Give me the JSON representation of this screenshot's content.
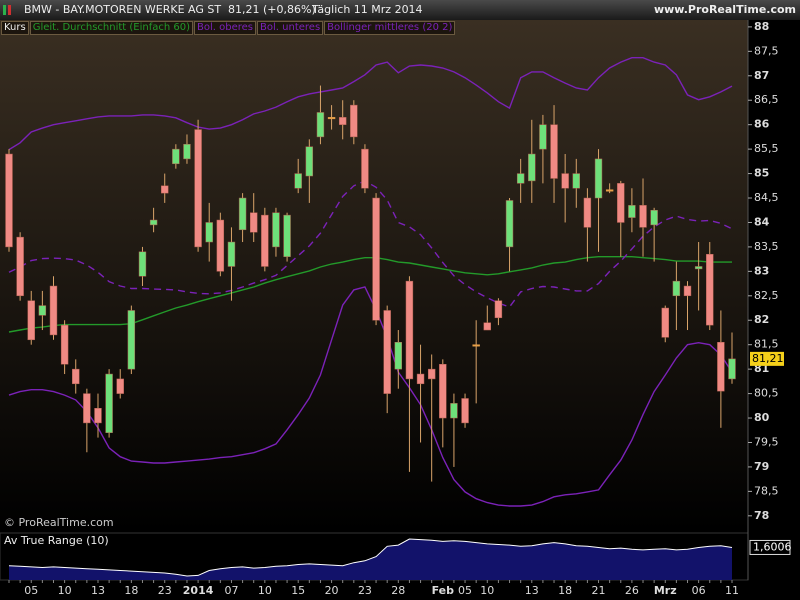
{
  "header": {
    "symbol": "BMW - BAY.MOTOREN WERKE AG ST",
    "quote": "81,21 (+0,86%)",
    "period": "Täglich  11 Mrz 2014",
    "site": "www.ProRealTime.com",
    "watermark": "© ProRealTime.com"
  },
  "chart_data": [
    {
      "type": "candlestick",
      "name": "Kurs",
      "categories": [
        null,
        null,
        "05",
        null,
        null,
        "10",
        null,
        null,
        "13",
        null,
        null,
        "18",
        null,
        null,
        "23",
        null,
        null,
        "2014",
        null,
        null,
        "07",
        null,
        null,
        "10",
        null,
        null,
        "15",
        null,
        null,
        "20",
        null,
        null,
        "23",
        null,
        null,
        "28",
        null,
        null,
        null,
        "Feb",
        null,
        "05",
        null,
        "10",
        null,
        null,
        null,
        "13",
        null,
        null,
        "18",
        null,
        null,
        "21",
        null,
        null,
        "26",
        null,
        null,
        "Mrz",
        null,
        null,
        "06",
        null,
        null,
        "11"
      ],
      "open": [
        85.4,
        83.7,
        82.4,
        82.1,
        82.7,
        81.9,
        81.0,
        80.5,
        80.2,
        79.7,
        80.8,
        81.0,
        82.9,
        83.95,
        84.75,
        85.2,
        85.3,
        85.9,
        83.6,
        84.05,
        83.1,
        83.85,
        84.2,
        84.15,
        83.5,
        83.3,
        84.7,
        84.95,
        85.75,
        86.15,
        86.15,
        86.4,
        85.5,
        84.5,
        82.2,
        81.0,
        82.8,
        80.9,
        81.0,
        81.1,
        80.0,
        80.4,
        81.5,
        81.95,
        82.4,
        83.5,
        84.8,
        84.85,
        85.5,
        86.0,
        85.0,
        84.7,
        84.5,
        84.5,
        84.67,
        84.8,
        84.1,
        84.35,
        83.95,
        82.25,
        82.5,
        82.7,
        83.05,
        83.35,
        81.55,
        80.8
      ],
      "high": [
        85.5,
        83.8,
        82.6,
        82.6,
        82.9,
        82.0,
        81.2,
        80.6,
        80.5,
        81.0,
        81.0,
        82.3,
        83.5,
        84.3,
        85.0,
        85.6,
        85.8,
        86.1,
        84.4,
        84.2,
        83.9,
        84.6,
        84.6,
        84.3,
        84.3,
        84.2,
        85.3,
        85.7,
        86.8,
        86.4,
        86.5,
        86.5,
        85.6,
        84.6,
        82.3,
        81.8,
        82.9,
        81.5,
        81.3,
        81.2,
        80.5,
        80.5,
        82.0,
        82.3,
        82.45,
        84.5,
        85.3,
        86.1,
        86.2,
        86.4,
        85.4,
        85.3,
        84.7,
        85.5,
        84.8,
        84.85,
        84.7,
        84.9,
        84.3,
        82.3,
        83.2,
        82.8,
        83.6,
        83.6,
        82.2,
        81.75
      ],
      "low": [
        83.4,
        82.4,
        81.5,
        81.8,
        81.6,
        80.9,
        80.5,
        79.3,
        79.6,
        79.6,
        80.4,
        80.9,
        82.7,
        83.8,
        84.4,
        85.1,
        85.2,
        83.4,
        83.2,
        82.9,
        82.4,
        83.6,
        83.6,
        83.0,
        83.3,
        83.2,
        84.6,
        84.4,
        85.6,
        85.9,
        85.7,
        85.6,
        84.6,
        81.9,
        80.1,
        80.6,
        78.9,
        79.5,
        78.7,
        79.4,
        79.0,
        79.8,
        80.3,
        81.8,
        81.9,
        83.0,
        84.4,
        84.4,
        84.8,
        84.4,
        84.0,
        84.3,
        83.2,
        83.4,
        84.6,
        83.3,
        83.8,
        83.3,
        83.2,
        81.55,
        81.8,
        81.8,
        82.2,
        81.8,
        79.8,
        80.7
      ],
      "close": [
        83.5,
        82.5,
        81.6,
        82.3,
        81.7,
        81.1,
        80.7,
        79.9,
        79.9,
        80.9,
        80.5,
        82.2,
        83.4,
        84.05,
        84.6,
        85.5,
        85.6,
        83.5,
        84.0,
        83.0,
        83.6,
        84.5,
        83.8,
        83.1,
        84.2,
        84.15,
        85.0,
        85.55,
        86.25,
        86.15,
        86.0,
        85.75,
        84.7,
        82.0,
        80.5,
        81.55,
        80.8,
        80.7,
        80.8,
        80.0,
        80.3,
        79.9,
        81.5,
        81.8,
        82.05,
        84.45,
        85.0,
        85.4,
        86.0,
        84.9,
        84.7,
        85.0,
        83.9,
        85.3,
        84.67,
        84.0,
        84.35,
        83.9,
        84.25,
        81.65,
        82.8,
        82.5,
        83.1,
        81.9,
        80.55,
        81.21
      ],
      "up_color": "#6ee07a",
      "down_color": "#f08a84",
      "flat_color": "#e8a048",
      "wick_color": "#d9a46a",
      "last_price": {
        "value": 81.21,
        "label": "81,21"
      },
      "series": [
        {
          "name": "Gleit. Durchschnitt (Einfach 60)",
          "color": "#239a2a",
          "values": [
            81.76,
            81.8,
            81.84,
            81.86,
            81.89,
            81.91,
            81.91,
            81.91,
            81.91,
            81.91,
            81.91,
            81.93,
            82.01,
            82.09,
            82.17,
            82.25,
            82.31,
            82.38,
            82.44,
            82.5,
            82.56,
            82.62,
            82.68,
            82.76,
            82.83,
            82.89,
            82.95,
            83.01,
            83.09,
            83.15,
            83.19,
            83.24,
            83.28,
            83.28,
            83.24,
            83.19,
            83.17,
            83.13,
            83.09,
            83.05,
            83.01,
            82.97,
            82.95,
            82.93,
            82.95,
            82.99,
            83.03,
            83.07,
            83.13,
            83.17,
            83.19,
            83.24,
            83.28,
            83.3,
            83.3,
            83.3,
            83.3,
            83.28,
            83.26,
            83.24,
            83.21,
            83.21,
            83.21,
            83.19,
            83.19,
            83.19
          ]
        },
        {
          "name": "Bol. oberes",
          "color": "#7b22b8",
          "values": [
            85.49,
            85.63,
            85.85,
            85.93,
            86.0,
            86.04,
            86.08,
            86.12,
            86.16,
            86.18,
            86.18,
            86.18,
            86.2,
            86.2,
            86.18,
            86.14,
            86.04,
            85.95,
            85.91,
            85.93,
            86.0,
            86.1,
            86.22,
            86.28,
            86.36,
            86.47,
            86.57,
            86.63,
            86.67,
            86.71,
            86.75,
            86.88,
            87.02,
            87.22,
            87.28,
            87.06,
            87.2,
            87.22,
            87.2,
            87.16,
            87.08,
            86.96,
            86.81,
            86.65,
            86.47,
            86.34,
            86.96,
            87.08,
            87.08,
            86.96,
            86.85,
            86.75,
            86.71,
            86.96,
            87.16,
            87.28,
            87.37,
            87.37,
            87.28,
            87.22,
            87.02,
            86.61,
            86.51,
            86.57,
            86.67,
            86.79
          ]
        },
        {
          "name": "Bol. unteres",
          "color": "#7b22b8",
          "values": [
            80.47,
            80.54,
            80.58,
            80.58,
            80.54,
            80.47,
            80.37,
            80.13,
            79.8,
            79.39,
            79.21,
            79.12,
            79.1,
            79.08,
            79.08,
            79.1,
            79.12,
            79.14,
            79.16,
            79.19,
            79.21,
            79.25,
            79.29,
            79.37,
            79.47,
            79.76,
            80.07,
            80.41,
            80.88,
            81.6,
            82.31,
            82.62,
            82.68,
            82.21,
            81.64,
            80.94,
            80.62,
            80.27,
            79.76,
            79.19,
            78.74,
            78.49,
            78.35,
            78.27,
            78.22,
            78.2,
            78.2,
            78.22,
            78.29,
            78.39,
            78.43,
            78.45,
            78.49,
            78.53,
            78.84,
            79.14,
            79.55,
            80.07,
            80.54,
            80.88,
            81.23,
            81.5,
            81.54,
            81.5,
            81.29,
            80.94
          ]
        },
        {
          "name": "Bollinger mittleres (20 2)",
          "color": "#7b22b8",
          "dashed": true,
          "values": [
            82.98,
            83.09,
            83.22,
            83.26,
            83.27,
            83.26,
            83.23,
            83.13,
            82.98,
            82.79,
            82.7,
            82.65,
            82.65,
            82.64,
            82.63,
            82.62,
            82.58,
            82.55,
            82.54,
            82.56,
            82.61,
            82.68,
            82.76,
            82.83,
            82.92,
            83.12,
            83.32,
            83.52,
            83.78,
            84.16,
            84.53,
            84.75,
            84.85,
            84.72,
            84.46,
            84.0,
            83.91,
            83.75,
            83.48,
            83.18,
            82.91,
            82.73,
            82.58,
            82.46,
            82.35,
            82.27,
            82.58,
            82.65,
            82.69,
            82.68,
            82.64,
            82.6,
            82.6,
            82.75,
            83.0,
            83.21,
            83.46,
            83.72,
            83.91,
            84.05,
            84.13,
            84.06,
            84.03,
            84.04,
            83.98,
            83.87
          ]
        }
      ],
      "ylim": [
        77.71,
        88.1
      ],
      "yticks": [
        78,
        {
          "value": 78.5,
          "label": "78,5"
        },
        79,
        {
          "value": 79.5,
          "label": "79,5"
        },
        80,
        {
          "value": 80.5,
          "label": "80,5"
        },
        81,
        {
          "value": 81.5,
          "label": "81,5"
        },
        82,
        {
          "value": 82.5,
          "label": "82,5"
        },
        83,
        {
          "value": 83.5,
          "label": "83,5"
        },
        84,
        {
          "value": 84.5,
          "label": "84,5"
        },
        85,
        {
          "value": 85.5,
          "label": "85,5"
        },
        86,
        {
          "value": 86.5,
          "label": "86,5"
        },
        87,
        {
          "value": 87.5,
          "label": "87,5"
        },
        88
      ]
    },
    {
      "type": "area",
      "title": "Av True Range (10)",
      "color": "#12126a",
      "line_color": "#ffffff",
      "values": [
        1.3,
        1.29,
        1.28,
        1.27,
        1.28,
        1.27,
        1.26,
        1.25,
        1.24,
        1.23,
        1.22,
        1.21,
        1.2,
        1.19,
        1.18,
        1.16,
        1.13,
        1.14,
        1.22,
        1.25,
        1.27,
        1.28,
        1.26,
        1.27,
        1.29,
        1.3,
        1.32,
        1.33,
        1.32,
        1.31,
        1.3,
        1.35,
        1.38,
        1.45,
        1.62,
        1.64,
        1.74,
        1.73,
        1.72,
        1.7,
        1.71,
        1.7,
        1.68,
        1.66,
        1.65,
        1.64,
        1.62,
        1.63,
        1.66,
        1.68,
        1.66,
        1.63,
        1.62,
        1.6,
        1.58,
        1.59,
        1.57,
        1.56,
        1.57,
        1.58,
        1.56,
        1.57,
        1.6,
        1.62,
        1.63,
        1.6006
      ],
      "last_value": {
        "value": 1.6006,
        "label": "1,6006"
      }
    }
  ]
}
